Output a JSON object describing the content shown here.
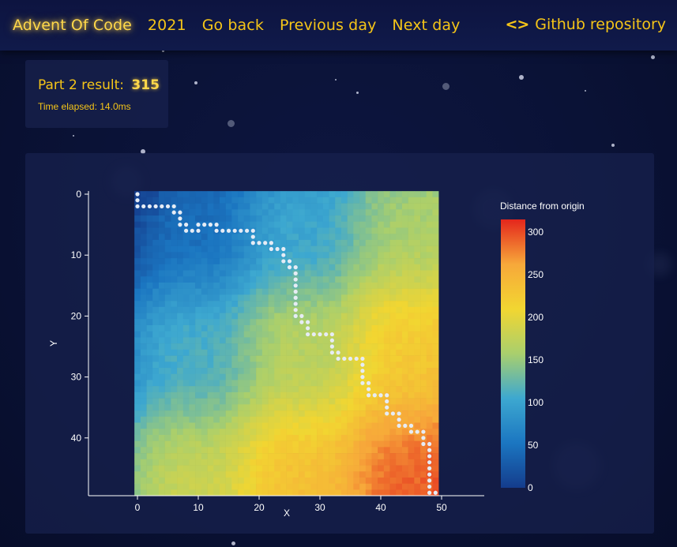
{
  "nav": {
    "brand": "Advent Of Code",
    "year": "2021",
    "go_back": "Go back",
    "previous_day": "Previous day",
    "next_day": "Next day",
    "repo_icon": "<>",
    "repo_label": "Github repository"
  },
  "result": {
    "label": "Part 2 result:",
    "value": "315",
    "time": "Time elapsed: 14.0ms"
  },
  "colors": {
    "accent": "#f5c518",
    "background": "#0a1236",
    "card": "#18214e"
  },
  "chart_data": {
    "type": "heatmap",
    "xlabel": "X",
    "ylabel": "Y",
    "x_ticks": [
      0,
      10,
      20,
      30,
      40,
      50
    ],
    "y_ticks": [
      0,
      10,
      20,
      30,
      40
    ],
    "grid_size": [
      50,
      50
    ],
    "x_range": [
      -8,
      57
    ],
    "y_range": [
      0,
      50
    ],
    "colorbar": {
      "title": "Distance from origin",
      "ticks": [
        0,
        50,
        100,
        150,
        200,
        250,
        300
      ],
      "range": [
        0,
        315
      ],
      "colorscale": [
        "#143c8c",
        "#1b76c1",
        "#3da8d0",
        "#a9cf6d",
        "#f2d631",
        "#f7a83a",
        "#e4261c"
      ]
    },
    "path": [
      [
        0,
        0
      ],
      [
        0,
        1
      ],
      [
        0,
        2
      ],
      [
        1,
        2
      ],
      [
        2,
        2
      ],
      [
        3,
        2
      ],
      [
        4,
        2
      ],
      [
        5,
        2
      ],
      [
        6,
        2
      ],
      [
        6,
        3
      ],
      [
        7,
        3
      ],
      [
        7,
        4
      ],
      [
        7,
        5
      ],
      [
        8,
        5
      ],
      [
        8,
        6
      ],
      [
        9,
        6
      ],
      [
        10,
        6
      ],
      [
        10,
        5
      ],
      [
        11,
        5
      ],
      [
        12,
        5
      ],
      [
        13,
        5
      ],
      [
        13,
        6
      ],
      [
        14,
        6
      ],
      [
        15,
        6
      ],
      [
        16,
        6
      ],
      [
        17,
        6
      ],
      [
        18,
        6
      ],
      [
        19,
        6
      ],
      [
        19,
        7
      ],
      [
        19,
        8
      ],
      [
        20,
        8
      ],
      [
        21,
        8
      ],
      [
        22,
        8
      ],
      [
        22,
        9
      ],
      [
        23,
        9
      ],
      [
        24,
        9
      ],
      [
        24,
        10
      ],
      [
        24,
        11
      ],
      [
        25,
        11
      ],
      [
        25,
        12
      ],
      [
        26,
        12
      ],
      [
        26,
        13
      ],
      [
        26,
        14
      ],
      [
        26,
        15
      ],
      [
        26,
        16
      ],
      [
        26,
        17
      ],
      [
        26,
        18
      ],
      [
        26,
        19
      ],
      [
        26,
        20
      ],
      [
        27,
        20
      ],
      [
        27,
        21
      ],
      [
        28,
        21
      ],
      [
        28,
        22
      ],
      [
        28,
        23
      ],
      [
        29,
        23
      ],
      [
        30,
        23
      ],
      [
        31,
        23
      ],
      [
        32,
        23
      ],
      [
        32,
        24
      ],
      [
        32,
        25
      ],
      [
        32,
        26
      ],
      [
        33,
        26
      ],
      [
        33,
        27
      ],
      [
        34,
        27
      ],
      [
        35,
        27
      ],
      [
        36,
        27
      ],
      [
        37,
        27
      ],
      [
        37,
        28
      ],
      [
        37,
        29
      ],
      [
        37,
        30
      ],
      [
        37,
        31
      ],
      [
        38,
        31
      ],
      [
        38,
        32
      ],
      [
        38,
        33
      ],
      [
        39,
        33
      ],
      [
        40,
        33
      ],
      [
        41,
        33
      ],
      [
        41,
        34
      ],
      [
        41,
        35
      ],
      [
        41,
        36
      ],
      [
        42,
        36
      ],
      [
        43,
        36
      ],
      [
        43,
        37
      ],
      [
        43,
        38
      ],
      [
        44,
        38
      ],
      [
        45,
        38
      ],
      [
        45,
        39
      ],
      [
        46,
        39
      ],
      [
        47,
        39
      ],
      [
        47,
        40
      ],
      [
        47,
        41
      ],
      [
        48,
        41
      ],
      [
        48,
        42
      ],
      [
        48,
        43
      ],
      [
        48,
        44
      ],
      [
        48,
        45
      ],
      [
        48,
        46
      ],
      [
        48,
        47
      ],
      [
        48,
        48
      ],
      [
        48,
        49
      ],
      [
        49,
        49
      ]
    ]
  }
}
